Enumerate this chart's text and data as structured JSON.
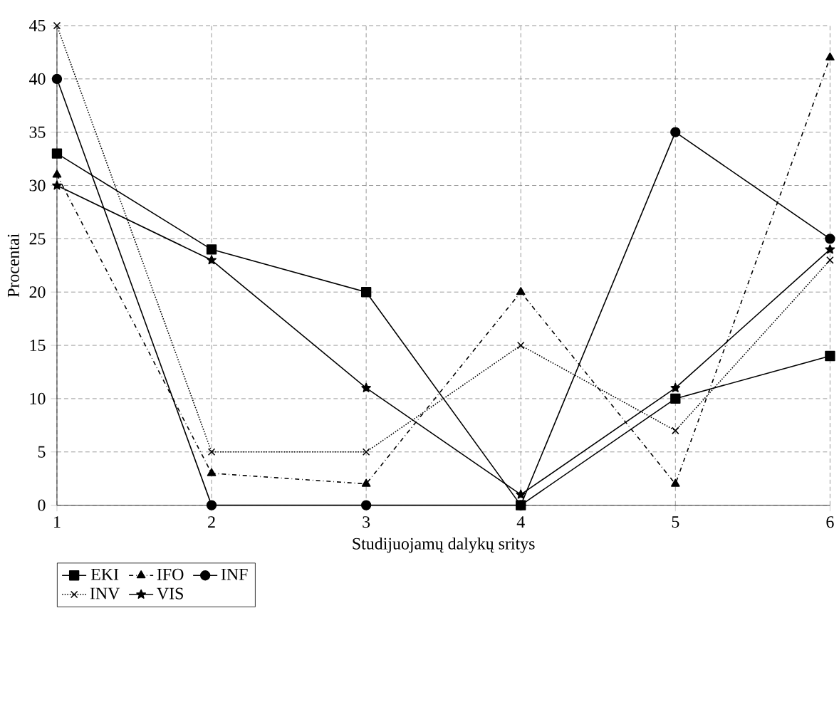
{
  "chart_data": {
    "type": "line",
    "xlabel": "Studijuojamų dalykų sritys",
    "ylabel": "Procentai",
    "x": [
      1,
      2,
      3,
      4,
      5,
      6
    ],
    "xlim": [
      1,
      6
    ],
    "xticks": [
      1,
      2,
      3,
      4,
      5,
      6
    ],
    "ylim": [
      0,
      45
    ],
    "yticks": [
      0,
      5,
      10,
      15,
      20,
      25,
      30,
      35,
      40,
      45
    ],
    "grid": true,
    "legend": "bottom",
    "series": [
      {
        "name": "EKI",
        "color": "#000000",
        "marker": "square",
        "line_style": "solid",
        "values": [
          33,
          24,
          20,
          0,
          10,
          14
        ]
      },
      {
        "name": "IFO",
        "color": "#000000",
        "marker": "triangle",
        "line_style": "dashed",
        "values": [
          31,
          3,
          2,
          20,
          2,
          42
        ]
      },
      {
        "name": "INF",
        "color": "#000000",
        "marker": "circle",
        "line_style": "solid",
        "values": [
          40,
          0,
          0,
          0,
          35,
          25
        ]
      },
      {
        "name": "INV",
        "color": "#000000",
        "marker": "cross",
        "line_style": "dotted",
        "values": [
          45,
          5,
          5,
          15,
          7,
          23
        ]
      },
      {
        "name": "VIS",
        "color": "#000000",
        "marker": "star",
        "line_style": "solid",
        "values": [
          30,
          23,
          11,
          1,
          11,
          24
        ]
      }
    ]
  }
}
